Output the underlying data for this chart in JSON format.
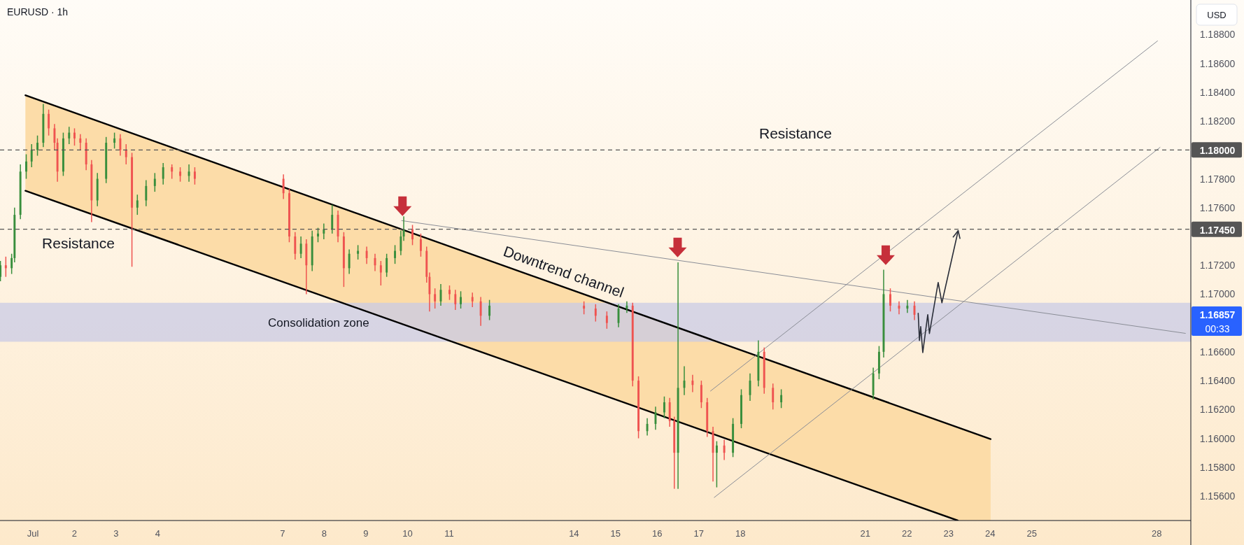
{
  "chart_data": {
    "type": "candlestick",
    "title": "EURUSD · 1h",
    "ylabel": "USD",
    "xlim": [
      0.21,
      28.82
    ],
    "ylim": [
      1.1543,
      1.1904
    ],
    "xticks": [
      {
        "value": 1,
        "label": "Jul"
      },
      2,
      3,
      4,
      7,
      8,
      9,
      10,
      11,
      14,
      15,
      16,
      17,
      18,
      21,
      22,
      23,
      24,
      25,
      28
    ],
    "yticks": [
      {
        "value": 1.156,
        "label": "1.15600"
      },
      {
        "value": 1.158,
        "label": "1.15800"
      },
      {
        "value": 1.16,
        "label": "1.16000"
      },
      {
        "value": 1.162,
        "label": "1.16200"
      },
      {
        "value": 1.164,
        "label": "1.16400"
      },
      {
        "value": 1.166,
        "label": "1.16600"
      },
      {
        "value": 1.17,
        "label": "1.17000"
      },
      {
        "value": 1.172,
        "label": "1.17200"
      },
      {
        "value": 1.176,
        "label": "1.17600"
      },
      {
        "value": 1.178,
        "label": "1.17800"
      },
      {
        "value": 1.182,
        "label": "1.18200"
      },
      {
        "value": 1.184,
        "label": "1.18400"
      },
      {
        "value": 1.186,
        "label": "1.18600"
      },
      {
        "value": 1.188,
        "label": "1.18800"
      }
    ],
    "x": [
      0.22,
      0.35,
      0.49,
      0.56,
      0.7,
      0.84,
      0.97,
      1.11,
      1.25,
      1.38,
      1.52,
      1.59,
      1.73,
      1.87,
      2.0,
      2.14,
      2.28,
      2.41,
      2.55,
      2.76,
      2.96,
      3.1,
      3.24,
      3.38,
      3.51,
      3.72,
      3.93,
      4.13,
      4.34,
      4.54,
      4.75,
      4.89,
      7.02,
      7.16,
      7.3,
      7.44,
      7.57,
      7.71,
      7.85,
      7.99,
      8.19,
      8.33,
      8.47,
      8.6,
      8.81,
      9.02,
      9.22,
      9.36,
      9.5,
      9.7,
      9.84,
      9.91,
      10.12,
      10.32,
      10.46,
      10.53,
      10.66,
      10.8,
      11.01,
      11.15,
      11.28,
      11.56,
      11.76,
      11.97,
      14.24,
      14.52,
      14.79,
      15.07,
      15.27,
      15.41,
      15.55,
      15.76,
      15.96,
      16.17,
      16.3,
      16.41,
      16.5,
      16.65,
      16.85,
      17.06,
      17.2,
      17.34,
      17.43,
      17.61,
      17.82,
      18.02,
      18.23,
      18.43,
      18.57,
      18.78,
      18.98,
      21.19,
      21.33,
      21.44,
      21.6,
      21.81,
      22.01,
      22.18
    ],
    "ohlc": [
      [
        1.1712,
        1.1723,
        1.1709,
        1.172
      ],
      [
        1.172,
        1.1726,
        1.1712,
        1.1718
      ],
      [
        1.1718,
        1.1728,
        1.1714,
        1.1725
      ],
      [
        1.1725,
        1.176,
        1.1722,
        1.1755
      ],
      [
        1.1755,
        1.179,
        1.1752,
        1.1785
      ],
      [
        1.1785,
        1.1797,
        1.178,
        1.1792
      ],
      [
        1.1792,
        1.1804,
        1.1788,
        1.18
      ],
      [
        1.18,
        1.181,
        1.1796,
        1.1805
      ],
      [
        1.1805,
        1.1832,
        1.1802,
        1.1825
      ],
      [
        1.1825,
        1.1828,
        1.181,
        1.1815
      ],
      [
        1.1815,
        1.1818,
        1.18,
        1.1805
      ],
      [
        1.1805,
        1.1808,
        1.1778,
        1.1785
      ],
      [
        1.1785,
        1.1812,
        1.1782,
        1.1808
      ],
      [
        1.1808,
        1.1816,
        1.1804,
        1.1812
      ],
      [
        1.1812,
        1.1815,
        1.1803,
        1.1808
      ],
      [
        1.1808,
        1.1811,
        1.18,
        1.1805
      ],
      [
        1.1805,
        1.1808,
        1.1786,
        1.179
      ],
      [
        1.179,
        1.1793,
        1.175,
        1.1765
      ],
      [
        1.1765,
        1.1784,
        1.1761,
        1.178
      ],
      [
        1.178,
        1.1809,
        1.1777,
        1.1805
      ],
      [
        1.1805,
        1.1812,
        1.1801,
        1.1808
      ],
      [
        1.1808,
        1.1811,
        1.1796,
        1.18
      ],
      [
        1.18,
        1.1804,
        1.179,
        1.1795
      ],
      [
        1.1795,
        1.1798,
        1.1719,
        1.176
      ],
      [
        1.176,
        1.1769,
        1.1755,
        1.1765
      ],
      [
        1.1765,
        1.1779,
        1.1761,
        1.1775
      ],
      [
        1.1775,
        1.1784,
        1.1771,
        1.178
      ],
      [
        1.178,
        1.1791,
        1.1776,
        1.1788
      ],
      [
        1.1788,
        1.179,
        1.178,
        1.1785
      ],
      [
        1.1785,
        1.1788,
        1.1778,
        1.1782
      ],
      [
        1.1782,
        1.179,
        1.1778,
        1.1785
      ],
      [
        1.1785,
        1.1788,
        1.1776,
        1.178
      ],
      [
        1.178,
        1.1783,
        1.1766,
        1.177
      ],
      [
        1.177,
        1.1773,
        1.1736,
        1.174
      ],
      [
        1.174,
        1.1743,
        1.1724,
        1.1728
      ],
      [
        1.1728,
        1.174,
        1.1725,
        1.1735
      ],
      [
        1.1735,
        1.1738,
        1.17,
        1.172
      ],
      [
        1.172,
        1.1744,
        1.1716,
        1.174
      ],
      [
        1.174,
        1.1746,
        1.1736,
        1.1742
      ],
      [
        1.1742,
        1.1749,
        1.1738,
        1.1745
      ],
      [
        1.1745,
        1.1762,
        1.1742,
        1.1755
      ],
      [
        1.1755,
        1.1758,
        1.1736,
        1.174
      ],
      [
        1.174,
        1.1743,
        1.1705,
        1.1718
      ],
      [
        1.1718,
        1.1731,
        1.1714,
        1.1728
      ],
      [
        1.1728,
        1.1734,
        1.1724,
        1.173
      ],
      [
        1.173,
        1.1733,
        1.1721,
        1.1725
      ],
      [
        1.1725,
        1.1728,
        1.1716,
        1.172
      ],
      [
        1.172,
        1.1723,
        1.1706,
        1.1715
      ],
      [
        1.1715,
        1.1728,
        1.1712,
        1.1725
      ],
      [
        1.1725,
        1.1734,
        1.1721,
        1.173
      ],
      [
        1.173,
        1.1744,
        1.1727,
        1.174
      ],
      [
        1.174,
        1.1754,
        1.1737,
        1.1745
      ],
      [
        1.1745,
        1.1748,
        1.1734,
        1.1738
      ],
      [
        1.1738,
        1.1742,
        1.1726,
        1.173
      ],
      [
        1.173,
        1.1733,
        1.1708,
        1.1712
      ],
      [
        1.1712,
        1.1715,
        1.1688,
        1.17
      ],
      [
        1.17,
        1.1704,
        1.169,
        1.1695
      ],
      [
        1.1695,
        1.1707,
        1.1692,
        1.1703
      ],
      [
        1.1703,
        1.1706,
        1.1696,
        1.17
      ],
      [
        1.17,
        1.1703,
        1.1689,
        1.1693
      ],
      [
        1.1693,
        1.1702,
        1.169,
        1.1698
      ],
      [
        1.1698,
        1.1701,
        1.1691,
        1.1695
      ],
      [
        1.1695,
        1.1698,
        1.1678,
        1.1685
      ],
      [
        1.1685,
        1.1696,
        1.1682,
        1.1692
      ],
      [
        1.1692,
        1.1695,
        1.1686,
        1.169
      ],
      [
        1.169,
        1.1693,
        1.1681,
        1.1685
      ],
      [
        1.1685,
        1.1688,
        1.1676,
        1.168
      ],
      [
        1.168,
        1.1693,
        1.1677,
        1.169
      ],
      [
        1.169,
        1.1695,
        1.1687,
        1.1692
      ],
      [
        1.1692,
        1.1694,
        1.1636,
        1.164
      ],
      [
        1.164,
        1.1643,
        1.16,
        1.1605
      ],
      [
        1.1605,
        1.1614,
        1.1602,
        1.161
      ],
      [
        1.161,
        1.1622,
        1.1606,
        1.1618
      ],
      [
        1.1618,
        1.1629,
        1.1614,
        1.1625
      ],
      [
        1.1625,
        1.1628,
        1.1608,
        1.1612
      ],
      [
        1.1612,
        1.1615,
        1.1565,
        1.159
      ],
      [
        1.159,
        1.1722,
        1.1565,
        1.1635
      ],
      [
        1.1635,
        1.165,
        1.163,
        1.164
      ],
      [
        1.164,
        1.1644,
        1.1632,
        1.1637
      ],
      [
        1.1637,
        1.164,
        1.1621,
        1.1625
      ],
      [
        1.1625,
        1.1628,
        1.1601,
        1.1605
      ],
      [
        1.1605,
        1.1608,
        1.157,
        1.159
      ],
      [
        1.159,
        1.1598,
        1.1566,
        1.1595
      ],
      [
        1.1595,
        1.1599,
        1.1585,
        1.159
      ],
      [
        1.159,
        1.1614,
        1.1587,
        1.161
      ],
      [
        1.161,
        1.1634,
        1.1607,
        1.163
      ],
      [
        1.163,
        1.1645,
        1.1626,
        1.164
      ],
      [
        1.164,
        1.1668,
        1.1636,
        1.166
      ],
      [
        1.166,
        1.1663,
        1.1631,
        1.1635
      ],
      [
        1.1635,
        1.1638,
        1.162,
        1.1625
      ],
      [
        1.1625,
        1.1634,
        1.1621,
        1.163
      ],
      [
        1.163,
        1.1649,
        1.1627,
        1.1645
      ],
      [
        1.1645,
        1.1664,
        1.1641,
        1.166
      ],
      [
        1.166,
        1.1717,
        1.1656,
        1.17
      ],
      [
        1.17,
        1.1704,
        1.1688,
        1.1692
      ],
      [
        1.1692,
        1.1695,
        1.1686,
        1.169
      ],
      [
        1.169,
        1.1696,
        1.1687,
        1.1692
      ],
      [
        1.1692,
        1.1695,
        1.1682,
        1.16857
      ]
    ],
    "colors": [
      "#388e3c",
      "#ef5350",
      "#388e3c",
      "#388e3c",
      "#388e3c",
      "#388e3c",
      "#388e3c",
      "#388e3c",
      "#388e3c",
      "#ef5350",
      "#ef5350",
      "#ef5350",
      "#388e3c",
      "#388e3c",
      "#ef5350",
      "#ef5350",
      "#ef5350",
      "#ef5350",
      "#388e3c",
      "#388e3c",
      "#388e3c",
      "#ef5350",
      "#ef5350",
      "#ef5350",
      "#388e3c",
      "#388e3c",
      "#388e3c",
      "#388e3c",
      "#ef5350",
      "#ef5350",
      "#388e3c",
      "#ef5350",
      "#ef5350",
      "#ef5350",
      "#ef5350",
      "#388e3c",
      "#ef5350",
      "#388e3c",
      "#388e3c",
      "#388e3c",
      "#388e3c",
      "#ef5350",
      "#ef5350",
      "#388e3c",
      "#388e3c",
      "#ef5350",
      "#ef5350",
      "#ef5350",
      "#388e3c",
      "#388e3c",
      "#388e3c",
      "#388e3c",
      "#ef5350",
      "#ef5350",
      "#ef5350",
      "#ef5350",
      "#ef5350",
      "#388e3c",
      "#ef5350",
      "#ef5350",
      "#388e3c",
      "#ef5350",
      "#ef5350",
      "#388e3c",
      "#ef5350",
      "#ef5350",
      "#ef5350",
      "#388e3c",
      "#388e3c",
      "#ef5350",
      "#ef5350",
      "#388e3c",
      "#388e3c",
      "#388e3c",
      "#ef5350",
      "#ef5350",
      "#388e3c",
      "#388e3c",
      "#ef5350",
      "#ef5350",
      "#ef5350",
      "#ef5350",
      "#388e3c",
      "#ef5350",
      "#388e3c",
      "#388e3c",
      "#388e3c",
      "#388e3c",
      "#ef5350",
      "#ef5350",
      "#388e3c",
      "#388e3c",
      "#388e3c",
      "#388e3c",
      "#ef5350",
      "#ef5350",
      "#388e3c",
      "#ef5350"
    ],
    "series": [
      {
        "type": "line",
        "color": "#000000",
        "x": [
          0.82,
          23.22,
          24.01
        ],
        "values": [
          1.18379,
          1.16076,
          1.15995
        ],
        "lower": [
          1.17717,
          1.1543,
          1.1543
        ],
        "upper": [
          1.18379,
          1.16076,
          1.15995
        ]
      },
      {
        "type": "line",
        "color": "#000000",
        "x": [
          0.82,
          23.22
        ],
        "values": [
          1.17717,
          1.1543
        ]
      },
      {
        "type": "line",
        "color": "#8a8d96",
        "x": [
          9.86,
          28.69
        ],
        "values": [
          1.1751,
          1.16728
        ]
      },
      {
        "type": "line",
        "color": "#8a8d96",
        "x": [
          17.28,
          28.02
        ],
        "values": [
          1.16328,
          1.18756
        ]
      },
      {
        "type": "line",
        "color": "#8a8d96",
        "x": [
          17.37,
          28.08
        ],
        "values": [
          1.1559,
          1.18018
        ]
      },
      {
        "type": "line",
        "color": "#2a2e39",
        "x": [
          22.27,
          22.3,
          22.33,
          22.38,
          22.5,
          22.54,
          22.75,
          22.84,
          23.23
        ],
        "values": [
          1.16867,
          1.16678,
          1.16775,
          1.16595,
          1.16858,
          1.16727,
          1.17081,
          1.1694,
          1.1744
        ]
      },
      {
        "type": "scatter",
        "color": "#c62f3a",
        "x": [
          9.88,
          16.49,
          21.49
        ],
        "values": [
          1.1761,
          1.17324,
          1.1727
        ]
      }
    ],
    "bands": [
      {
        "axis": "y",
        "from": 1.1667,
        "to": 1.1694,
        "label": "Consolidation zone",
        "color": "#c9cbe6"
      }
    ],
    "ref_lines": [
      {
        "axis": "y",
        "value": 1.18,
        "label": "1.18000",
        "color": "#555555",
        "line_style": "dashed"
      },
      {
        "axis": "y",
        "value": 1.1745,
        "label": "1.17450",
        "color": "#555555",
        "line_style": "dashed"
      }
    ],
    "annotations": [
      "Resistance",
      "Resistance",
      "Downtrend channel",
      "1.16857",
      "00:33"
    ]
  }
}
